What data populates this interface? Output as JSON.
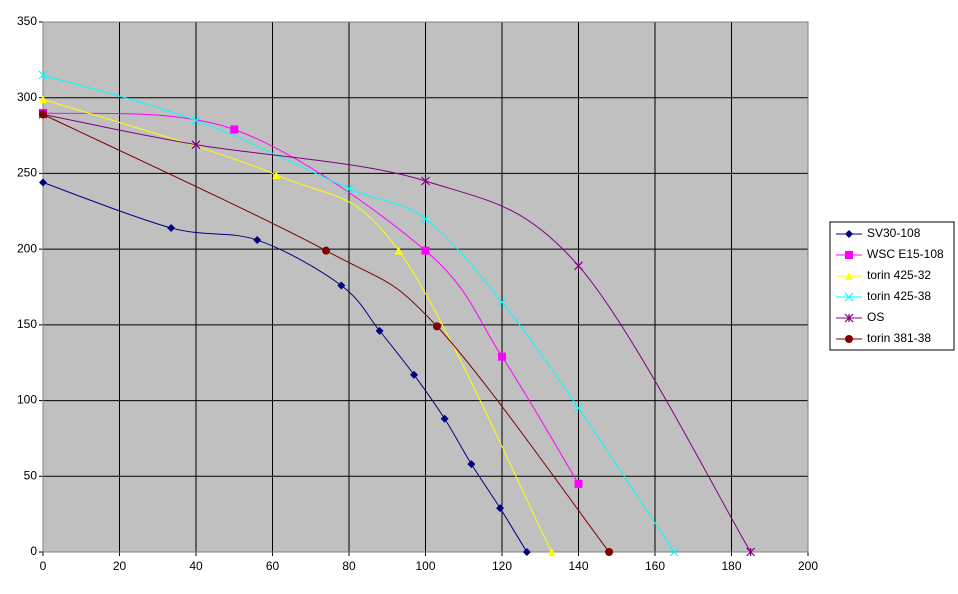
{
  "chart_data": {
    "type": "scatter",
    "xlim": [
      0,
      200
    ],
    "xticks": [
      0,
      20,
      40,
      60,
      80,
      100,
      120,
      140,
      160,
      180,
      200
    ],
    "ylim": [
      0,
      350
    ],
    "yticks": [
      0,
      50,
      100,
      150,
      200,
      250,
      300,
      350
    ],
    "grid": true,
    "smooth": true,
    "legend": "right",
    "background": "#c0c0c0",
    "series": [
      {
        "name": "SV30-108",
        "color": "#000080",
        "marker": "diamond",
        "x": [
          0,
          33.5,
          56,
          78,
          88,
          97,
          105,
          112,
          119.5,
          126.5
        ],
        "values": [
          244,
          214,
          206,
          176,
          146,
          117,
          88,
          58,
          29,
          0
        ]
      },
      {
        "name": "WSC E15-108",
        "color": "#ff00ff",
        "marker": "square",
        "x": [
          0,
          50,
          100,
          120,
          140
        ],
        "values": [
          290,
          279,
          199,
          129,
          45
        ]
      },
      {
        "name": "torin 425-32",
        "color": "#ffff00",
        "marker": "triangle",
        "x": [
          0,
          61,
          93,
          133
        ],
        "values": [
          299,
          249,
          199,
          0
        ]
      },
      {
        "name": "torin 425-38",
        "color": "#00ffff",
        "marker": "x",
        "x": [
          0,
          40,
          80,
          100,
          120,
          140,
          165
        ],
        "values": [
          315,
          285,
          240,
          220,
          165,
          95,
          0
        ]
      },
      {
        "name": "OS",
        "color": "#800080",
        "marker": "star",
        "x": [
          0,
          40,
          100,
          140,
          185
        ],
        "values": [
          289,
          269,
          245,
          189,
          0
        ]
      },
      {
        "name": "torin 381-38",
        "color": "#800000",
        "marker": "circle",
        "x": [
          0,
          74,
          103,
          148
        ],
        "values": [
          289,
          199,
          149,
          0
        ]
      }
    ]
  }
}
